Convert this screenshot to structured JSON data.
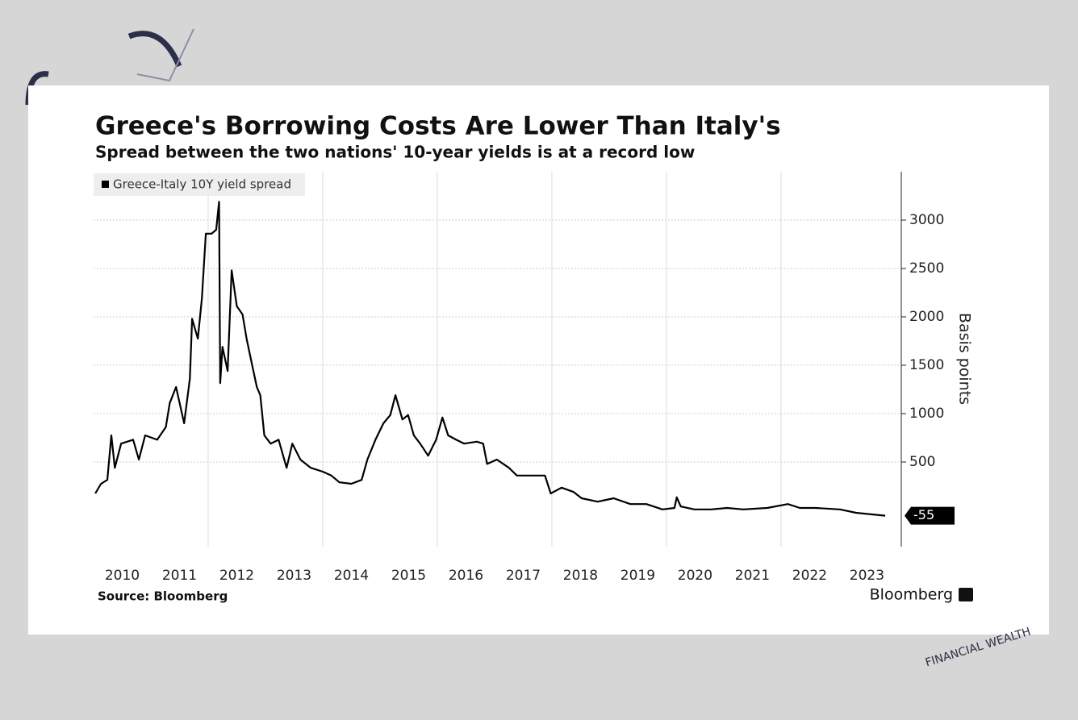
{
  "chart_data": {
    "type": "line",
    "title": "Greece's Borrowing Costs Are Lower Than Italy's",
    "subtitle": "Spread between the two nations' 10-year yields is at a record low",
    "y_label": "Basis points",
    "source": "Source: Bloomberg",
    "brand": "Bloomberg",
    "watermark": "FINANCIAL WEALTH",
    "x": [
      2010.03,
      2010.13,
      2010.24,
      2010.31,
      2010.37,
      2010.48,
      2010.69,
      2010.79,
      2010.9,
      2011.11,
      2011.26,
      2011.33,
      2011.44,
      2011.58,
      2011.68,
      2011.72,
      2011.82,
      2011.89,
      2011.96,
      2012.06,
      2012.14,
      2012.19,
      2012.21,
      2012.25,
      2012.34,
      2012.41,
      2012.5,
      2012.6,
      2012.67,
      2012.76,
      2012.85,
      2012.91,
      2012.98,
      2013.09,
      2013.23,
      2013.37,
      2013.47,
      2013.61,
      2013.79,
      2014.0,
      2014.15,
      2014.29,
      2014.5,
      2014.68,
      2014.78,
      2014.92,
      2015.06,
      2015.18,
      2015.27,
      2015.39,
      2015.49,
      2015.59,
      2015.7,
      2015.84,
      2015.98,
      2016.09,
      2016.19,
      2016.33,
      2016.47,
      2016.69,
      2016.8,
      2016.87,
      2017.04,
      2017.25,
      2017.39,
      2017.6,
      2017.88,
      2017.98,
      2018.17,
      2018.38,
      2018.52,
      2018.8,
      2019.08,
      2019.37,
      2019.65,
      2019.93,
      2020.14,
      2020.18,
      2020.25,
      2020.49,
      2020.78,
      2021.06,
      2021.34,
      2021.76,
      2022.12,
      2022.33,
      2022.61,
      2023.03,
      2023.31,
      2023.82
    ],
    "series": [
      {
        "name": "Greece-Italy 10Y yield spread",
        "color": "#000000",
        "values": [
          175,
          275,
          315,
          775,
          440,
          690,
          730,
          525,
          775,
          730,
          860,
          1110,
          1275,
          900,
          1360,
          1980,
          1775,
          2190,
          2860,
          2860,
          2900,
          3190,
          1315,
          1690,
          1440,
          2480,
          2110,
          2025,
          1775,
          1525,
          1275,
          1190,
          775,
          690,
          730,
          440,
          690,
          525,
          440,
          400,
          360,
          290,
          275,
          315,
          525,
          730,
          900,
          985,
          1190,
          940,
          985,
          775,
          690,
          565,
          730,
          960,
          775,
          730,
          690,
          710,
          690,
          480,
          525,
          440,
          360,
          360,
          360,
          175,
          235,
          190,
          125,
          90,
          125,
          65,
          65,
          10,
          25,
          135,
          40,
          10,
          10,
          25,
          10,
          25,
          65,
          25,
          25,
          10,
          -25,
          -55
        ]
      }
    ],
    "xlim": [
      2010,
      2024.1
    ],
    "xticks": [
      {
        "value": 2010.5,
        "label": "2010"
      },
      {
        "value": 2011.5,
        "label": "2011"
      },
      {
        "value": 2012.5,
        "label": "2012"
      },
      {
        "value": 2013.5,
        "label": "2013"
      },
      {
        "value": 2014.5,
        "label": "2014"
      },
      {
        "value": 2015.5,
        "label": "2015"
      },
      {
        "value": 2016.5,
        "label": "2016"
      },
      {
        "value": 2017.5,
        "label": "2017"
      },
      {
        "value": 2018.5,
        "label": "2018"
      },
      {
        "value": 2019.5,
        "label": "2019"
      },
      {
        "value": 2020.5,
        "label": "2020"
      },
      {
        "value": 2021.5,
        "label": "2021"
      },
      {
        "value": 2022.5,
        "label": "2022"
      },
      {
        "value": 2023.5,
        "label": "2023"
      }
    ],
    "xgrid": [
      2012,
      2014,
      2016,
      2018,
      2020,
      2022
    ],
    "ylim": [
      -375,
      3500
    ],
    "yticks": [
      500,
      1000,
      1500,
      2000,
      2500,
      3000
    ],
    "grid": true,
    "legend": "top-left"
  }
}
